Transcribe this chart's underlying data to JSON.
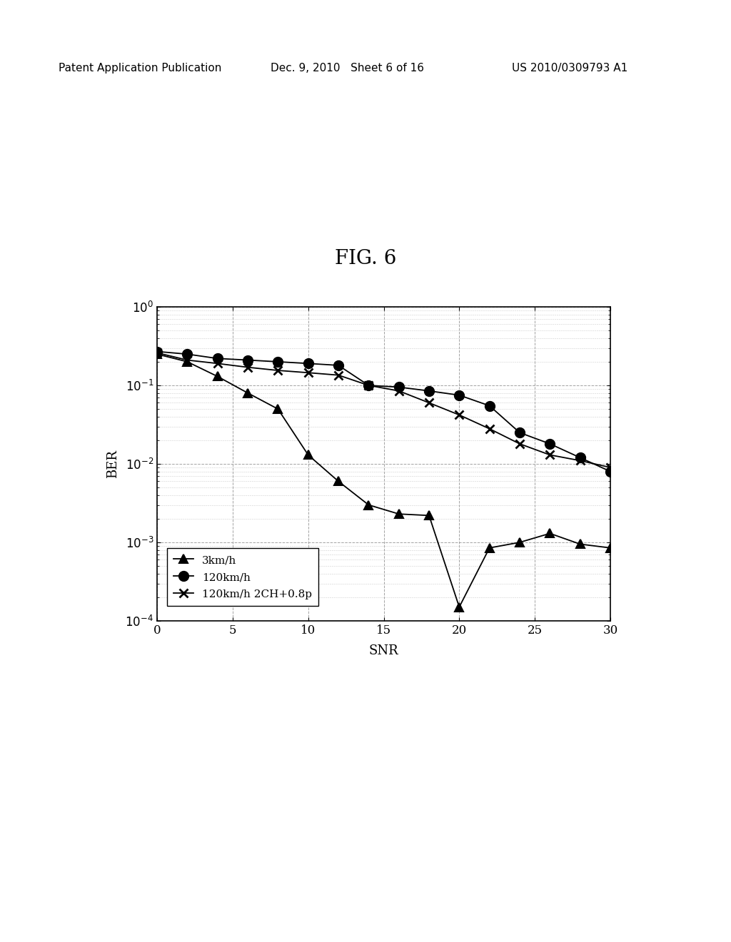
{
  "title": "FIG. 6",
  "xlabel": "SNR",
  "ylabel": "BER",
  "xlim": [
    0,
    30
  ],
  "ylim_log": [
    -4,
    0
  ],
  "series": [
    {
      "label": "3km/h",
      "marker": "^",
      "color": "#000000",
      "x": [
        0,
        2,
        4,
        6,
        8,
        10,
        12,
        14,
        16,
        18,
        20,
        22,
        24,
        26,
        28,
        30
      ],
      "y": [
        0.25,
        0.2,
        0.13,
        0.08,
        0.05,
        0.013,
        0.006,
        0.003,
        0.0023,
        0.0022,
        0.00015,
        0.00085,
        0.001,
        0.0013,
        0.00095,
        0.00085
      ]
    },
    {
      "label": "120km/h",
      "marker": "o",
      "color": "#000000",
      "x": [
        0,
        2,
        4,
        6,
        8,
        10,
        12,
        14,
        16,
        18,
        20,
        22,
        24,
        26,
        28,
        30
      ],
      "y": [
        0.27,
        0.25,
        0.22,
        0.21,
        0.2,
        0.19,
        0.18,
        0.1,
        0.095,
        0.085,
        0.075,
        0.055,
        0.025,
        0.018,
        0.012,
        0.008
      ]
    },
    {
      "label": "120km/h 2CH+0.8p",
      "marker": "x",
      "color": "#000000",
      "x": [
        0,
        2,
        4,
        6,
        8,
        10,
        12,
        14,
        16,
        18,
        20,
        22,
        24,
        26,
        28,
        30
      ],
      "y": [
        0.26,
        0.21,
        0.19,
        0.17,
        0.155,
        0.145,
        0.135,
        0.1,
        0.085,
        0.06,
        0.042,
        0.028,
        0.018,
        0.013,
        0.011,
        0.009
      ]
    }
  ],
  "header_left": "Patent Application Publication",
  "header_center": "Dec. 9, 2010   Sheet 6 of 16",
  "header_right": "US 2010/0309793 A1",
  "background_color": "#ffffff",
  "grid_major_color": "#999999",
  "grid_minor_color": "#bbbbbb",
  "title_fontsize": 20,
  "header_fontsize": 11,
  "axis_label_fontsize": 13,
  "tick_fontsize": 12
}
